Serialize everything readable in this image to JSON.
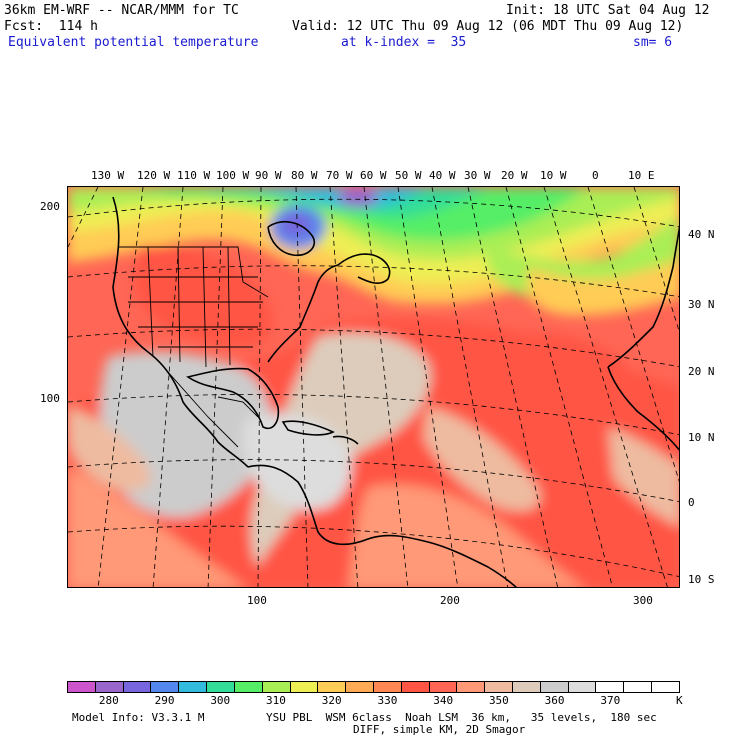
{
  "header": {
    "model_title": "36km EM-WRF -- NCAR/MMM for TC",
    "init": "Init: 18 UTC Sat 04 Aug 12",
    "forecast": "Fcst:  114 h",
    "valid": "Valid: 12 UTC Thu 09 Aug 12 (06 MDT Thu 09 Aug 12)",
    "field": "Equivalent potential temperature",
    "level": "at k-index =  35",
    "smoothing": "sm= 6"
  },
  "map": {
    "top_lon_labels": [
      "130 W",
      "120 W",
      "110 W",
      "100 W",
      "90 W",
      "80 W",
      "70 W",
      "60 W",
      "50 W",
      "40 W",
      "30 W",
      "20 W",
      "10 W",
      "0",
      "10 E"
    ],
    "right_lat_labels": [
      "40 N",
      "30 N",
      "20 N",
      "10 N",
      "0",
      "10 S"
    ],
    "left_grid_labels": [
      "200",
      "100"
    ],
    "bottom_grid_labels": [
      "100",
      "200",
      "300"
    ]
  },
  "legend": {
    "colors": [
      "#cc55cc",
      "#9966cc",
      "#7766dd",
      "#5588ee",
      "#33bbdd",
      "#33dd99",
      "#55ee66",
      "#aaee55",
      "#eeee55",
      "#ffcc55",
      "#ffaa55",
      "#ff8855",
      "#ff5544",
      "#ff6655",
      "#ff9977",
      "#eebba0",
      "#ddccbb",
      "#cccccc",
      "#dddddd",
      "#ffffff",
      "#ffffff",
      "#ffffff"
    ],
    "labels": [
      "280",
      "290",
      "300",
      "310",
      "320",
      "330",
      "340",
      "350",
      "360",
      "370"
    ],
    "units": "K"
  },
  "footer": {
    "line1_left": "Model Info: V3.3.1 M",
    "line1_right": "YSU PBL  WSM 6class  Noah LSM  36 km,   35 levels,  180 sec",
    "line2": "DIFF, simple KM, 2D Smagor"
  }
}
